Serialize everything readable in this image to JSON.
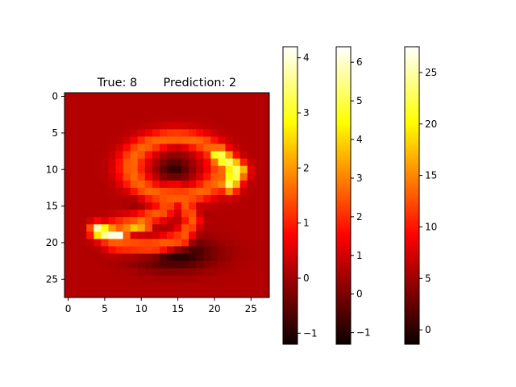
{
  "chart_data": {
    "type": "heatmap",
    "title": "True: 8       Prediction: 2",
    "xlabel": "",
    "ylabel": "",
    "grid": false,
    "colormap": "hot",
    "colormap_stops": [
      [
        0.0,
        "#0b0000"
      ],
      [
        0.365,
        "#ff0000"
      ],
      [
        0.746,
        "#ffff00"
      ],
      [
        1.0,
        "#ffffff"
      ]
    ],
    "xlim": [
      -0.5,
      27.5
    ],
    "ylim": [
      27.5,
      -0.5
    ],
    "x_ticks": [
      0,
      5,
      10,
      15,
      20,
      25
    ],
    "y_ticks": [
      0,
      5,
      10,
      15,
      20,
      25
    ],
    "image_vrange": [
      -1.2,
      4.2
    ],
    "background_value": 0.15,
    "digit_strokes": [
      {
        "type": "ellipse",
        "cx": 14.8,
        "cy": 9.7,
        "rx": 6.2,
        "ry": 4.0,
        "width": 1.35,
        "value": 1.6
      },
      {
        "type": "line",
        "points": [
          [
            14.5,
            13.0
          ],
          [
            13.2,
            15.5
          ],
          [
            10.0,
            17.0
          ],
          [
            6.0,
            18.0
          ],
          [
            4.5,
            18.8
          ],
          [
            6.5,
            20.2
          ],
          [
            11.5,
            20.5
          ],
          [
            15.5,
            19.5
          ],
          [
            17.0,
            17.0
          ],
          [
            16.0,
            14.5
          ]
        ],
        "width": 1.25,
        "value": 1.5
      },
      {
        "type": "line",
        "points": [
          [
            20.5,
            8.0
          ],
          [
            22.0,
            9.2
          ],
          [
            23.2,
            10.2
          ],
          [
            22.0,
            12.0
          ]
        ],
        "width": 1.3,
        "value": 3.4
      },
      {
        "type": "line",
        "points": [
          [
            4.0,
            18.3
          ],
          [
            5.5,
            18.8
          ],
          [
            7.0,
            19.0
          ]
        ],
        "width": 1.0,
        "value": 4.1
      },
      {
        "type": "line",
        "points": [
          [
            8.5,
            17.8
          ],
          [
            10.5,
            17.5
          ]
        ],
        "width": 0.9,
        "value": 2.6
      }
    ],
    "dark_halo": [
      {
        "cx": 14.5,
        "cy": 21.5,
        "rx": 5.5,
        "ry": 2.2,
        "value": -1.1
      },
      {
        "cx": 15.0,
        "cy": 6.5,
        "rx": 3.5,
        "ry": 1.2,
        "value": -0.7
      },
      {
        "cx": 14.5,
        "cy": 10.0,
        "rx": 2.2,
        "ry": 1.6,
        "value": -0.9
      },
      {
        "cx": 9.5,
        "cy": 12.5,
        "rx": 1.4,
        "ry": 2.5,
        "value": -0.5
      },
      {
        "cx": 17.0,
        "cy": 16.5,
        "rx": 1.5,
        "ry": 2.0,
        "value": -0.4
      }
    ],
    "colorbars": [
      {
        "name": "",
        "range": [
          -1.2,
          4.2
        ],
        "ticks": [
          -1,
          0,
          1,
          2,
          3,
          4
        ]
      },
      {
        "name": "",
        "range": [
          -1.3,
          6.4
        ],
        "ticks": [
          -1,
          0,
          1,
          2,
          3,
          4,
          5,
          6
        ]
      },
      {
        "name": "",
        "range": [
          -1.4,
          27.5
        ],
        "ticks": [
          0,
          5,
          10,
          15,
          20,
          25
        ]
      }
    ]
  }
}
